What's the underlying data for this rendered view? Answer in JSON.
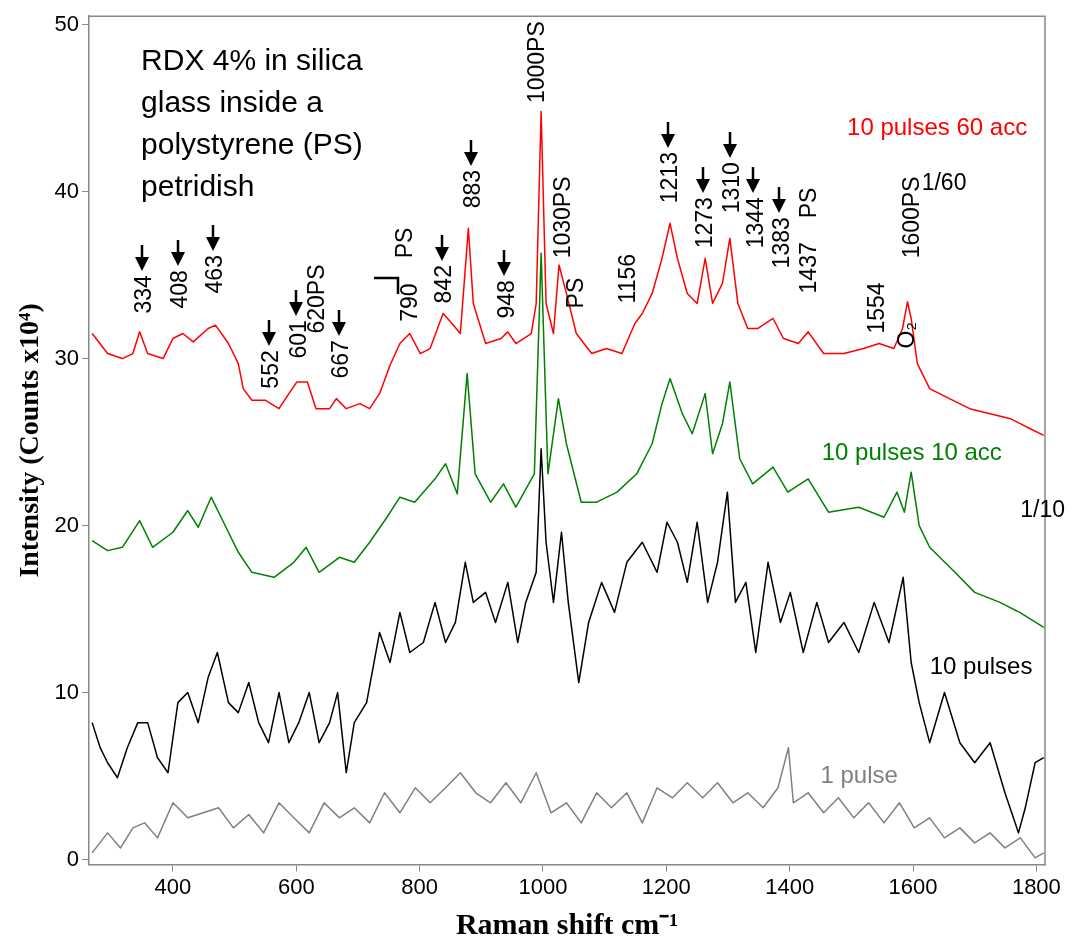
{
  "chart_data": {
    "type": "line",
    "title": "RDX 4% in silica glass inside a polystyrene (PS) petridish",
    "xlabel": "Raman shift cm⁻¹",
    "ylabel": "Intensity (Counts x10⁴)",
    "xlim": [
      264,
      1814
    ],
    "xticks": [
      400,
      600,
      800,
      1000,
      1200,
      1400,
      1600,
      1800
    ],
    "ylim": [
      -0.3,
      50.5
    ],
    "yticks": [
      0,
      10,
      20,
      30,
      40,
      50
    ],
    "grid": false,
    "marker": "none",
    "series": [
      {
        "name": "10 pulses 60 acc",
        "color": "#ff0000",
        "x": [
          269,
          294,
          318,
          335,
          346,
          359,
          384,
          400,
          416,
          433,
          457,
          469,
          490,
          506,
          514,
          528,
          550,
          572,
          588,
          601,
          618,
          632,
          654,
          665,
          681,
          703,
          719,
          735,
          752,
          768,
          784,
          801,
          817,
          838,
          850,
          866,
          879,
          887,
          907,
          932,
          943,
          956,
          981,
          989,
          997,
          1005,
          1017,
          1026,
          1038,
          1054,
          1079,
          1103,
          1128,
          1149,
          1161,
          1177,
          1193,
          1206,
          1218,
          1234,
          1250,
          1263,
          1275,
          1291,
          1303,
          1316,
          1332,
          1348,
          1373,
          1390,
          1414,
          1430,
          1455,
          1488,
          1520,
          1545,
          1569,
          1583,
          1591,
          1597,
          1607,
          1627,
          1659,
          1692,
          1725,
          1758,
          1790,
          1812
        ],
        "values": [
          31.5,
          30.3,
          30.0,
          30.3,
          31.6,
          30.3,
          30.0,
          31.2,
          31.5,
          31.0,
          31.8,
          32.0,
          30.9,
          29.7,
          28.2,
          27.5,
          27.5,
          27.0,
          27.9,
          28.6,
          28.6,
          27.0,
          27.0,
          27.6,
          27.0,
          27.3,
          27.0,
          27.9,
          29.6,
          30.9,
          31.5,
          30.3,
          30.6,
          32.7,
          32.2,
          31.5,
          37.8,
          33.3,
          30.9,
          31.2,
          31.6,
          30.9,
          31.5,
          33.3,
          44.8,
          33.3,
          31.5,
          35.6,
          33.9,
          31.5,
          30.3,
          30.6,
          30.3,
          32.1,
          32.7,
          33.9,
          36.0,
          38.1,
          36.0,
          33.9,
          33.3,
          36.0,
          33.3,
          34.5,
          37.2,
          33.3,
          31.8,
          31.8,
          32.4,
          31.2,
          30.9,
          31.6,
          30.3,
          30.3,
          30.6,
          30.9,
          30.6,
          31.8,
          33.4,
          32.4,
          29.7,
          28.2,
          27.6,
          27.0,
          26.7,
          26.4,
          25.8,
          25.4
        ]
      },
      {
        "name": "10 pulses 10 acc",
        "color": "#008000",
        "x": [
          269,
          294,
          318,
          346,
          367,
          400,
          424,
          441,
          462,
          482,
          506,
          528,
          564,
          596,
          616,
          637,
          670,
          694,
          719,
          747,
          768,
          792,
          825,
          842,
          861,
          877,
          890,
          915,
          936,
          956,
          986,
          997,
          1008,
          1025,
          1038,
          1062,
          1087,
          1120,
          1152,
          1177,
          1193,
          1206,
          1226,
          1242,
          1263,
          1275,
          1291,
          1303,
          1319,
          1340,
          1373,
          1397,
          1430,
          1463,
          1512,
          1553,
          1574,
          1586,
          1597,
          1610,
          1627,
          1668,
          1700,
          1741,
          1773,
          1812
        ],
        "values": [
          19.1,
          18.5,
          18.7,
          20.3,
          18.7,
          19.6,
          20.9,
          19.9,
          21.7,
          20.2,
          18.4,
          17.2,
          16.9,
          17.8,
          18.7,
          17.2,
          18.1,
          17.8,
          19.0,
          20.5,
          21.7,
          21.4,
          22.8,
          23.7,
          21.9,
          29.1,
          23.1,
          21.4,
          22.5,
          21.1,
          23.1,
          36.3,
          23.1,
          27.6,
          24.9,
          21.4,
          21.4,
          22.0,
          23.1,
          24.9,
          27.3,
          28.8,
          26.7,
          25.5,
          27.9,
          24.3,
          26.1,
          28.6,
          24.0,
          22.5,
          23.5,
          22.0,
          22.8,
          20.8,
          21.1,
          20.5,
          22.0,
          20.8,
          23.2,
          20.0,
          18.7,
          17.2,
          16.0,
          15.4,
          14.8,
          13.9
        ]
      },
      {
        "name": "10 pulses",
        "color": "#000000",
        "x": [
          269,
          282,
          294,
          310,
          326,
          343,
          359,
          375,
          392,
          408,
          424,
          441,
          457,
          472,
          490,
          506,
          523,
          539,
          555,
          572,
          588,
          604,
          621,
          637,
          654,
          667,
          681,
          694,
          714,
          735,
          752,
          768,
          784,
          806,
          825,
          842,
          858,
          874,
          887,
          907,
          923,
          943,
          959,
          972,
          989,
          997,
          1005,
          1017,
          1030,
          1041,
          1058,
          1074,
          1095,
          1116,
          1136,
          1161,
          1185,
          1201,
          1218,
          1234,
          1250,
          1267,
          1283,
          1299,
          1312,
          1329,
          1345,
          1365,
          1385,
          1401,
          1422,
          1444,
          1463,
          1488,
          1512,
          1537,
          1561,
          1584,
          1597,
          1610,
          1627,
          1651,
          1676,
          1700,
          1725,
          1749,
          1771,
          1782,
          1798,
          1812
        ],
        "values": [
          8.2,
          6.7,
          5.8,
          4.9,
          6.7,
          8.2,
          8.2,
          6.1,
          5.2,
          9.4,
          10.0,
          8.2,
          10.9,
          12.4,
          9.4,
          8.8,
          10.6,
          8.2,
          7.0,
          10.0,
          7.0,
          8.2,
          10.0,
          7.0,
          8.2,
          10.0,
          5.2,
          8.2,
          9.4,
          13.6,
          11.8,
          14.8,
          12.4,
          13.0,
          15.4,
          13.0,
          14.2,
          17.8,
          15.4,
          16.0,
          14.2,
          16.6,
          13.0,
          15.4,
          17.2,
          24.6,
          19.0,
          15.4,
          19.6,
          15.4,
          10.6,
          14.2,
          16.6,
          14.8,
          17.8,
          19.0,
          17.2,
          20.2,
          19.0,
          16.6,
          20.2,
          15.4,
          17.8,
          22.0,
          15.4,
          16.6,
          12.4,
          17.8,
          14.2,
          16.0,
          12.4,
          15.4,
          13.0,
          14.2,
          12.4,
          15.4,
          13.0,
          16.9,
          11.8,
          9.4,
          7.0,
          10.0,
          7.0,
          5.8,
          7.0,
          4.0,
          1.6,
          3.1,
          5.8,
          6.1
        ]
      },
      {
        "name": "1 pulse",
        "color": "#808080",
        "x": [
          269,
          294,
          315,
          335,
          354,
          375,
          400,
          424,
          449,
          474,
          498,
          523,
          547,
          572,
          596,
          621,
          645,
          670,
          694,
          719,
          743,
          768,
          793,
          817,
          842,
          866,
          891,
          915,
          940,
          964,
          989,
          1013,
          1038,
          1062,
          1087,
          1111,
          1136,
          1161,
          1185,
          1210,
          1234,
          1259,
          1283,
          1308,
          1332,
          1357,
          1381,
          1398,
          1406,
          1430,
          1455,
          1479,
          1504,
          1528,
          1553,
          1578,
          1602,
          1627,
          1651,
          1676,
          1700,
          1725,
          1749,
          1774,
          1798,
          1812
        ],
        "values": [
          0.4,
          1.6,
          0.7,
          1.9,
          2.2,
          1.3,
          3.4,
          2.5,
          2.8,
          3.1,
          1.9,
          2.7,
          1.6,
          3.4,
          2.5,
          1.6,
          3.4,
          2.5,
          3.1,
          2.2,
          4.0,
          2.8,
          4.3,
          3.4,
          4.3,
          5.2,
          4.0,
          3.4,
          4.6,
          3.4,
          5.2,
          2.8,
          3.4,
          2.2,
          4.0,
          3.1,
          4.0,
          2.2,
          4.3,
          3.7,
          4.6,
          3.7,
          4.6,
          3.4,
          4.0,
          3.1,
          4.3,
          6.7,
          3.4,
          4.0,
          2.8,
          3.7,
          2.5,
          3.4,
          2.2,
          3.4,
          1.9,
          2.5,
          1.3,
          1.9,
          1.0,
          1.6,
          0.7,
          1.3,
          0.1,
          0.4
        ]
      }
    ],
    "annotations": [
      "334",
      "408",
      "463",
      "552",
      "601",
      "620PS",
      "667",
      "790",
      "PS",
      "842",
      "883",
      "948",
      "1000PS",
      "1030PS",
      "PS",
      "1156",
      "1213",
      "1273",
      "1310",
      "1344",
      "1383",
      "PS",
      "1437",
      "1554",
      "1600PS",
      "O₂",
      "1/60",
      "1/10"
    ]
  }
}
